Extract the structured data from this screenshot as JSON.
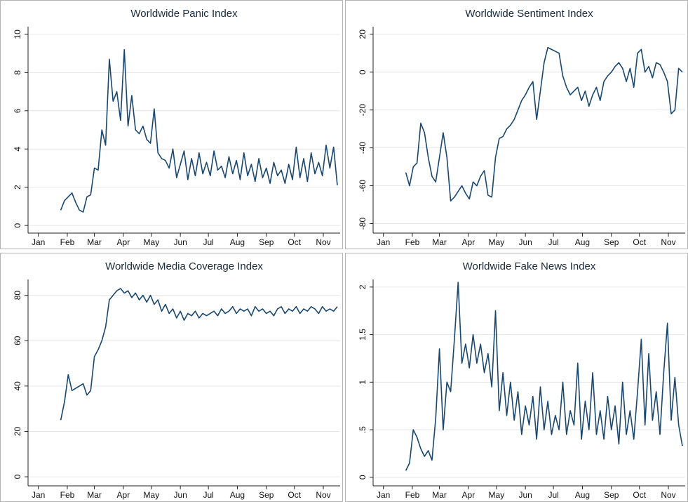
{
  "chart_data": [
    {
      "type": "line",
      "title": "Worldwide Panic Index",
      "color": "#1a476f",
      "grid": true,
      "x": [
        24,
        28,
        32,
        36,
        40,
        44,
        48,
        52,
        56,
        60,
        64,
        68,
        72,
        76,
        80,
        84,
        88,
        92,
        96,
        100,
        104,
        108,
        112,
        116,
        120,
        124,
        128,
        132,
        136,
        140,
        144,
        148,
        152,
        156,
        160,
        164,
        168,
        172,
        176,
        180,
        184,
        188,
        192,
        196,
        200,
        204,
        208,
        212,
        216,
        220,
        224,
        228,
        232,
        236,
        240,
        244,
        248,
        252,
        256,
        260,
        264,
        268,
        272,
        276,
        280,
        284,
        288,
        292,
        296,
        300,
        304,
        308,
        312,
        316,
        320
      ],
      "values": [
        0.8,
        1.3,
        1.5,
        1.7,
        1.2,
        0.8,
        0.7,
        1.5,
        1.6,
        3.0,
        2.9,
        5.0,
        4.2,
        8.7,
        6.5,
        7.0,
        5.5,
        9.2,
        5.2,
        6.8,
        5.0,
        4.8,
        5.2,
        4.5,
        4.3,
        6.1,
        3.8,
        3.5,
        3.4,
        3.0,
        4.0,
        2.5,
        3.2,
        3.9,
        2.4,
        3.5,
        2.6,
        3.8,
        2.7,
        3.3,
        2.6,
        3.9,
        2.9,
        3.1,
        2.5,
        3.6,
        2.7,
        3.4,
        2.4,
        3.8,
        2.6,
        3.2,
        2.3,
        3.5,
        2.5,
        3.0,
        2.2,
        3.3,
        2.6,
        2.9,
        2.2,
        3.2,
        2.4,
        4.1,
        2.5,
        3.5,
        2.3,
        3.8,
        2.7,
        3.3,
        2.6,
        4.2,
        3.0,
        4.1,
        2.1
      ],
      "xlim": [
        -11,
        323
      ],
      "xticks": [
        {
          "value": 0,
          "label": "Jan"
        },
        {
          "value": 31,
          "label": "Feb"
        },
        {
          "value": 60,
          "label": "Mar"
        },
        {
          "value": 91,
          "label": "Apr"
        },
        {
          "value": 121,
          "label": "May"
        },
        {
          "value": 152,
          "label": "Jun"
        },
        {
          "value": 182,
          "label": "Jul"
        },
        {
          "value": 213,
          "label": "Aug"
        },
        {
          "value": 244,
          "label": "Sep"
        },
        {
          "value": 274,
          "label": "Oct"
        },
        {
          "value": 305,
          "label": "Nov"
        }
      ],
      "ylim": [
        -0.4,
        10.4
      ],
      "yticks": [
        0,
        2,
        4,
        6,
        8,
        10
      ]
    },
    {
      "type": "line",
      "title": "Worldwide Sentiment Index",
      "color": "#1a476f",
      "grid": true,
      "x": [
        24,
        28,
        32,
        36,
        40,
        44,
        48,
        52,
        56,
        60,
        64,
        68,
        72,
        76,
        80,
        84,
        88,
        92,
        96,
        100,
        104,
        108,
        112,
        116,
        120,
        124,
        128,
        132,
        136,
        140,
        144,
        148,
        152,
        156,
        160,
        164,
        168,
        172,
        176,
        180,
        184,
        188,
        192,
        196,
        200,
        204,
        208,
        212,
        216,
        220,
        224,
        228,
        232,
        236,
        240,
        244,
        248,
        252,
        256,
        260,
        264,
        268,
        272,
        276,
        280,
        284,
        288,
        292,
        296,
        300,
        304,
        308,
        312,
        316,
        320
      ],
      "values": [
        -53,
        -60,
        -50,
        -48,
        -27,
        -32,
        -45,
        -55,
        -58,
        -45,
        -32,
        -45,
        -68,
        -66,
        -63,
        -60,
        -64,
        -67,
        -58,
        -60,
        -55,
        -52,
        -65,
        -66,
        -45,
        -35,
        -34,
        -30,
        -28,
        -25,
        -20,
        -15,
        -12,
        -8,
        -5,
        -25,
        -10,
        5,
        13,
        12,
        11,
        10,
        -2,
        -8,
        -12,
        -10,
        -8,
        -15,
        -10,
        -18,
        -12,
        -8,
        -15,
        -5,
        -2,
        0,
        3,
        5,
        2,
        -5,
        2,
        -8,
        10,
        12,
        0,
        3,
        -3,
        5,
        4,
        0,
        -5,
        -22,
        -20,
        2,
        0
      ],
      "xlim": [
        -11,
        323
      ],
      "xticks": [
        {
          "value": 0,
          "label": "Jan"
        },
        {
          "value": 31,
          "label": "Feb"
        },
        {
          "value": 60,
          "label": "Mar"
        },
        {
          "value": 91,
          "label": "Apr"
        },
        {
          "value": 121,
          "label": "May"
        },
        {
          "value": 152,
          "label": "Jun"
        },
        {
          "value": 182,
          "label": "Jul"
        },
        {
          "value": 213,
          "label": "Aug"
        },
        {
          "value": 244,
          "label": "Sep"
        },
        {
          "value": 274,
          "label": "Oct"
        },
        {
          "value": 305,
          "label": "Nov"
        }
      ],
      "ylim": [
        -85,
        24
      ],
      "yticks": [
        -80,
        -60,
        -40,
        -20,
        0,
        20
      ]
    },
    {
      "type": "line",
      "title": "Worldwide Media Coverage Index",
      "color": "#1a476f",
      "grid": true,
      "x": [
        24,
        28,
        32,
        36,
        40,
        44,
        48,
        52,
        56,
        60,
        64,
        68,
        72,
        76,
        80,
        84,
        88,
        92,
        96,
        100,
        104,
        108,
        112,
        116,
        120,
        124,
        128,
        132,
        136,
        140,
        144,
        148,
        152,
        156,
        160,
        164,
        168,
        172,
        176,
        180,
        184,
        188,
        192,
        196,
        200,
        204,
        208,
        212,
        216,
        220,
        224,
        228,
        232,
        236,
        240,
        244,
        248,
        252,
        256,
        260,
        264,
        268,
        272,
        276,
        280,
        284,
        288,
        292,
        296,
        300,
        304,
        308,
        312,
        316,
        320
      ],
      "values": [
        25,
        33,
        45,
        38,
        39,
        40,
        41,
        36,
        38,
        53,
        56,
        60,
        66,
        78,
        80,
        82,
        83,
        81,
        82,
        79,
        81,
        78,
        80,
        77,
        80,
        76,
        78,
        73,
        76,
        72,
        74,
        70,
        73,
        69,
        72,
        71,
        73,
        70,
        72,
        71,
        72,
        73,
        71,
        74,
        72,
        73,
        75,
        72,
        74,
        73,
        74,
        71,
        75,
        73,
        74,
        72,
        73,
        71,
        74,
        75,
        72,
        74,
        73,
        75,
        72,
        74,
        73,
        75,
        74,
        72,
        75,
        73,
        74,
        73,
        75
      ],
      "xlim": [
        -11,
        323
      ],
      "xticks": [
        {
          "value": 0,
          "label": "Jan"
        },
        {
          "value": 31,
          "label": "Feb"
        },
        {
          "value": 60,
          "label": "Mar"
        },
        {
          "value": 91,
          "label": "Apr"
        },
        {
          "value": 121,
          "label": "May"
        },
        {
          "value": 152,
          "label": "Jun"
        },
        {
          "value": 182,
          "label": "Jul"
        },
        {
          "value": 213,
          "label": "Aug"
        },
        {
          "value": 244,
          "label": "Sep"
        },
        {
          "value": 274,
          "label": "Oct"
        },
        {
          "value": 305,
          "label": "Nov"
        }
      ],
      "ylim": [
        -4,
        87
      ],
      "yticks": [
        0,
        20,
        40,
        60,
        80
      ]
    },
    {
      "type": "line",
      "title": "Worldwide Fake News Index",
      "color": "#1a476f",
      "grid": true,
      "x": [
        24,
        28,
        32,
        36,
        40,
        44,
        48,
        52,
        56,
        60,
        64,
        68,
        72,
        76,
        80,
        84,
        88,
        92,
        96,
        100,
        104,
        108,
        112,
        116,
        120,
        124,
        128,
        132,
        136,
        140,
        144,
        148,
        152,
        156,
        160,
        164,
        168,
        172,
        176,
        180,
        184,
        188,
        192,
        196,
        200,
        204,
        208,
        212,
        216,
        220,
        224,
        228,
        232,
        236,
        240,
        244,
        248,
        252,
        256,
        260,
        264,
        268,
        272,
        276,
        280,
        284,
        288,
        292,
        296,
        300,
        304,
        308,
        312,
        316,
        320
      ],
      "values": [
        0.07,
        0.15,
        0.5,
        0.42,
        0.3,
        0.22,
        0.28,
        0.18,
        0.62,
        1.35,
        0.5,
        1.0,
        0.9,
        1.45,
        2.05,
        1.2,
        1.4,
        1.15,
        1.5,
        1.2,
        1.4,
        1.1,
        1.3,
        0.95,
        1.75,
        0.7,
        1.1,
        0.65,
        1.0,
        0.6,
        0.9,
        0.45,
        0.75,
        0.55,
        0.85,
        0.4,
        0.95,
        0.5,
        0.8,
        0.45,
        0.65,
        0.5,
        1.0,
        0.45,
        0.7,
        0.55,
        1.2,
        0.4,
        0.8,
        0.5,
        1.1,
        0.45,
        0.7,
        0.4,
        0.85,
        0.5,
        0.75,
        0.35,
        1.0,
        0.45,
        0.7,
        0.4,
        0.9,
        1.45,
        0.55,
        1.3,
        0.6,
        0.9,
        0.45,
        1.1,
        1.62,
        0.6,
        1.05,
        0.55,
        0.33
      ],
      "xlim": [
        -11,
        323
      ],
      "xticks": [
        {
          "value": 0,
          "label": "Jan"
        },
        {
          "value": 31,
          "label": "Feb"
        },
        {
          "value": 60,
          "label": "Mar"
        },
        {
          "value": 91,
          "label": "Apr"
        },
        {
          "value": 121,
          "label": "May"
        },
        {
          "value": 152,
          "label": "Jun"
        },
        {
          "value": 182,
          "label": "Jul"
        },
        {
          "value": 213,
          "label": "Aug"
        },
        {
          "value": 244,
          "label": "Sep"
        },
        {
          "value": 274,
          "label": "Oct"
        },
        {
          "value": 305,
          "label": "Nov"
        }
      ],
      "ylim": [
        -0.09,
        2.08
      ],
      "yticks": [
        0,
        {
          "value": 0.5,
          "label": ".5"
        },
        1,
        1.5,
        2
      ]
    }
  ]
}
